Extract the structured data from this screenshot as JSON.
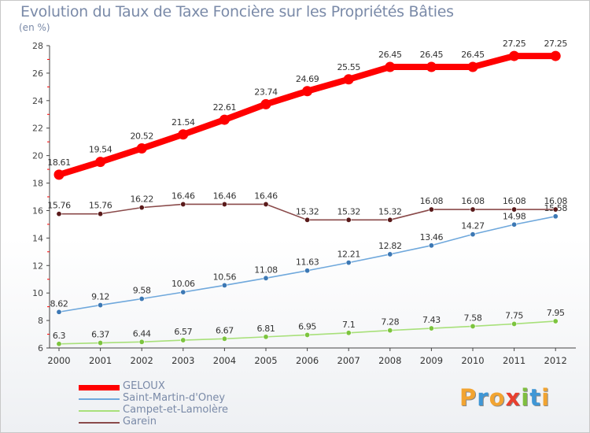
{
  "title": "Evolution du Taux de Taxe Foncière sur les Propriétés Bâties",
  "unit": "(en %)",
  "logo": {
    "text": "Proxiti",
    "letters": [
      {
        "ch": "P",
        "color": "#f2a431"
      },
      {
        "ch": "r",
        "color": "#3f97d6"
      },
      {
        "ch": "o",
        "color": "#f2a431"
      },
      {
        "ch": "x",
        "color": "#e8402f"
      },
      {
        "ch": "i",
        "color": "#7fbf3f"
      },
      {
        "ch": "t",
        "color": "#3f97d6"
      },
      {
        "ch": "i",
        "color": "#f2a431"
      }
    ]
  },
  "chart_data": {
    "type": "line",
    "title": "Evolution du Taux de Taxe Foncière sur les Propriétés Bâties",
    "ylabel": "(en %)",
    "xlabel": "",
    "x": [
      "2000",
      "2001",
      "2002",
      "2003",
      "2004",
      "2005",
      "2006",
      "2007",
      "2008",
      "2009",
      "2010",
      "2011",
      "2012"
    ],
    "ylim": [
      6,
      28
    ],
    "yticks": [
      6,
      8,
      10,
      12,
      14,
      16,
      18,
      20,
      22,
      24,
      26,
      28
    ],
    "grid": false,
    "legend": "bottom-left",
    "series": [
      {
        "name": "GELOUX",
        "color": "#ff0000",
        "marker": "#ff0000",
        "emphasis": true,
        "values": [
          18.61,
          19.54,
          20.52,
          21.54,
          22.61,
          23.74,
          24.69,
          25.55,
          26.45,
          26.45,
          26.45,
          27.25,
          27.25
        ],
        "labels": [
          "18.61",
          "19.54",
          "20.52",
          "21.54",
          "22.61",
          "23.74",
          "24.69",
          "25.55",
          "26.45",
          "26.45",
          "26.45",
          "27.25",
          "27.25"
        ]
      },
      {
        "name": "Saint-Martin-d'Oney",
        "color": "#6fa8dc",
        "marker": "#3c78b4",
        "emphasis": false,
        "values": [
          8.62,
          9.12,
          9.58,
          10.06,
          10.56,
          11.08,
          11.63,
          12.21,
          12.82,
          13.46,
          14.27,
          14.98,
          15.58
        ],
        "labels": [
          "8.62",
          "9.12",
          "9.58",
          "10.06",
          "10.56",
          "11.08",
          "11.63",
          "12.21",
          "12.82",
          "13.46",
          "14.27",
          "14.98",
          "15.58"
        ]
      },
      {
        "name": "Campet-et-Lamolère",
        "color": "#a8e07a",
        "marker": "#7cc43e",
        "emphasis": false,
        "values": [
          6.3,
          6.37,
          6.44,
          6.57,
          6.67,
          6.81,
          6.95,
          7.1,
          7.28,
          7.43,
          7.58,
          7.75,
          7.95
        ],
        "labels": [
          "6.3",
          "6.37",
          "6.44",
          "6.57",
          "6.67",
          "6.81",
          "6.95",
          "7.1",
          "7.28",
          "7.43",
          "7.58",
          "7.75",
          "7.95"
        ]
      },
      {
        "name": "Garein",
        "color": "#8a4a4a",
        "marker": "#5a1a1a",
        "emphasis": false,
        "values": [
          15.76,
          15.76,
          16.22,
          16.46,
          16.46,
          16.46,
          15.32,
          15.32,
          15.32,
          16.08,
          16.08,
          16.08,
          16.08
        ],
        "labels": [
          "15.76",
          "15.76",
          "16.22",
          "16.46",
          "16.46",
          "16.46",
          "15.32",
          "15.32",
          "15.32",
          "16.08",
          "16.08",
          "16.08",
          "16.08"
        ]
      }
    ]
  }
}
